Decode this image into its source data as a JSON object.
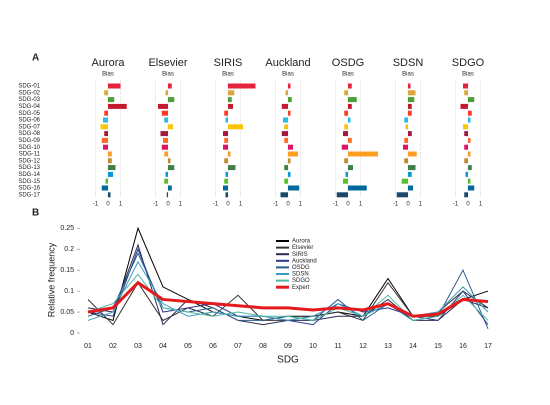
{
  "chart_data": [
    {
      "type": "hbar-panels",
      "label": "A",
      "subtitle": "Bias",
      "categories": [
        "SDG-01",
        "SDG-02",
        "SDG-03",
        "SDG-04",
        "SDG-05",
        "SDG-06",
        "SDG-07",
        "SDG-08",
        "SDG-09",
        "SDG-10",
        "SDG-11",
        "SDG-12",
        "SDG-13",
        "SDG-14",
        "SDG-15",
        "SDG-16",
        "SDG-17"
      ],
      "category_colors": [
        "#e5243b",
        "#dda63a",
        "#4c9f38",
        "#c5192d",
        "#ff3a21",
        "#26bde2",
        "#fcc30b",
        "#a21942",
        "#fd6925",
        "#dd1367",
        "#fd9d24",
        "#bf8b2e",
        "#3f7e44",
        "#0a97d9",
        "#56c02b",
        "#00689d",
        "#19486a"
      ],
      "xlim": [
        -2,
        3
      ],
      "xticks": [
        -1,
        0,
        1
      ],
      "series": [
        {
          "name": "Aurora",
          "values": [
            1.0,
            -0.3,
            0.5,
            1.5,
            -0.3,
            -0.4,
            -0.6,
            -0.3,
            -0.5,
            -0.4,
            0.3,
            0.3,
            0.6,
            0.4,
            -0.2,
            -0.5,
            0.2
          ]
        },
        {
          "name": "Elsevier",
          "values": [
            0.3,
            -0.2,
            0.5,
            -0.8,
            -0.5,
            -0.3,
            0.4,
            -0.6,
            -0.4,
            -0.5,
            -0.3,
            0.2,
            0.5,
            -0.2,
            -0.3,
            0.3,
            -0.1
          ]
        },
        {
          "name": "SIRIS",
          "values": [
            2.2,
            0.5,
            0.3,
            0.4,
            -0.3,
            -0.2,
            1.2,
            -0.4,
            -0.3,
            -0.4,
            0.2,
            -0.3,
            0.6,
            -0.2,
            -0.3,
            -0.4,
            -0.2
          ]
        },
        {
          "name": "Auckland",
          "values": [
            0.2,
            -0.2,
            0.3,
            -0.5,
            0.2,
            -0.4,
            -0.3,
            -0.5,
            -0.3,
            0.4,
            0.8,
            0.2,
            -0.3,
            0.2,
            -0.3,
            0.9,
            -0.6
          ]
        },
        {
          "name": "OSDG",
          "values": [
            0.3,
            -0.3,
            0.7,
            0.3,
            -0.3,
            0.2,
            -0.3,
            -0.4,
            0.3,
            -0.5,
            2.4,
            -0.3,
            0.4,
            -0.2,
            -0.4,
            1.5,
            -0.9
          ]
        },
        {
          "name": "SDSN",
          "values": [
            0.2,
            0.6,
            0.5,
            0.3,
            0.3,
            -0.3,
            -0.2,
            0.3,
            -0.3,
            -0.4,
            0.7,
            -0.3,
            0.6,
            0.3,
            -0.5,
            0.4,
            -0.9
          ]
        },
        {
          "name": "SDGO",
          "values": [
            -0.4,
            -0.3,
            0.5,
            -0.6,
            0.3,
            0.2,
            -0.4,
            -0.3,
            0.2,
            -0.3,
            0.2,
            -0.3,
            0.3,
            -0.2,
            0.2,
            0.5,
            -0.3
          ]
        }
      ]
    },
    {
      "type": "line",
      "label": "B",
      "x_label": "SDG",
      "y_label": "Relative frequency",
      "categories": [
        "01",
        "02",
        "03",
        "04",
        "05",
        "06",
        "07",
        "08",
        "09",
        "10",
        "11",
        "12",
        "13",
        "14",
        "15",
        "16",
        "17"
      ],
      "category_colors": [
        "#e5243b",
        "#dda63a",
        "#4c9f38",
        "#c5192d",
        "#ff3a21",
        "#26bde2",
        "#fcc30b",
        "#a21942",
        "#fd6925",
        "#dd1367",
        "#fd9d24",
        "#bf8b2e",
        "#3f7e44",
        "#0a97d9",
        "#56c02b",
        "#00689d",
        "#19486a"
      ],
      "ylim": [
        0,
        0.26
      ],
      "yticks": [
        0,
        0.05,
        0.1,
        0.15,
        0.2,
        0.25
      ],
      "series": [
        {
          "name": "Aurora",
          "color": "#000000",
          "line_width": 1,
          "values": [
            0.05,
            0.03,
            0.25,
            0.11,
            0.08,
            0.05,
            0.04,
            0.03,
            0.04,
            0.04,
            0.05,
            0.04,
            0.13,
            0.04,
            0.04,
            0.08,
            0.1
          ]
        },
        {
          "name": "Elsevier",
          "color": "#333333",
          "line_width": 1,
          "values": [
            0.08,
            0.02,
            0.12,
            0.03,
            0.06,
            0.04,
            0.09,
            0.03,
            0.03,
            0.04,
            0.05,
            0.03,
            0.12,
            0.04,
            0.05,
            0.1,
            0.06
          ]
        },
        {
          "name": "SIRIS",
          "color": "#2b2b55",
          "line_width": 1,
          "values": [
            0.06,
            0.05,
            0.21,
            0.02,
            0.08,
            0.06,
            0.03,
            0.02,
            0.03,
            0.03,
            0.04,
            0.04,
            0.08,
            0.03,
            0.03,
            0.08,
            0.06
          ]
        },
        {
          "name": "Auckland",
          "color": "#2d3a8c",
          "line_width": 1,
          "values": [
            0.05,
            0.04,
            0.2,
            0.05,
            0.06,
            0.07,
            0.04,
            0.04,
            0.03,
            0.02,
            0.07,
            0.05,
            0.06,
            0.04,
            0.03,
            0.1,
            0.02
          ]
        },
        {
          "name": "OSDG",
          "color": "#2a5d8f",
          "line_width": 1,
          "values": [
            0.04,
            0.06,
            0.19,
            0.06,
            0.05,
            0.06,
            0.03,
            0.03,
            0.04,
            0.03,
            0.08,
            0.03,
            0.07,
            0.03,
            0.04,
            0.15,
            0.01
          ]
        },
        {
          "name": "SDSN",
          "color": "#3a9bbf",
          "line_width": 1,
          "values": [
            0.03,
            0.05,
            0.17,
            0.07,
            0.04,
            0.05,
            0.04,
            0.04,
            0.03,
            0.04,
            0.07,
            0.04,
            0.07,
            0.04,
            0.05,
            0.11,
            0.05
          ]
        },
        {
          "name": "SDGO",
          "color": "#4fb8a8",
          "line_width": 1,
          "values": [
            0.05,
            0.07,
            0.14,
            0.06,
            0.05,
            0.04,
            0.05,
            0.04,
            0.04,
            0.03,
            0.06,
            0.04,
            0.09,
            0.03,
            0.04,
            0.09,
            0.03
          ]
        },
        {
          "name": "Expert",
          "color": "#e41a1c",
          "line_width": 3,
          "values": [
            0.05,
            0.06,
            0.12,
            0.08,
            0.075,
            0.07,
            0.065,
            0.06,
            0.06,
            0.055,
            0.06,
            0.055,
            0.07,
            0.04,
            0.045,
            0.08,
            0.075
          ]
        }
      ]
    }
  ]
}
